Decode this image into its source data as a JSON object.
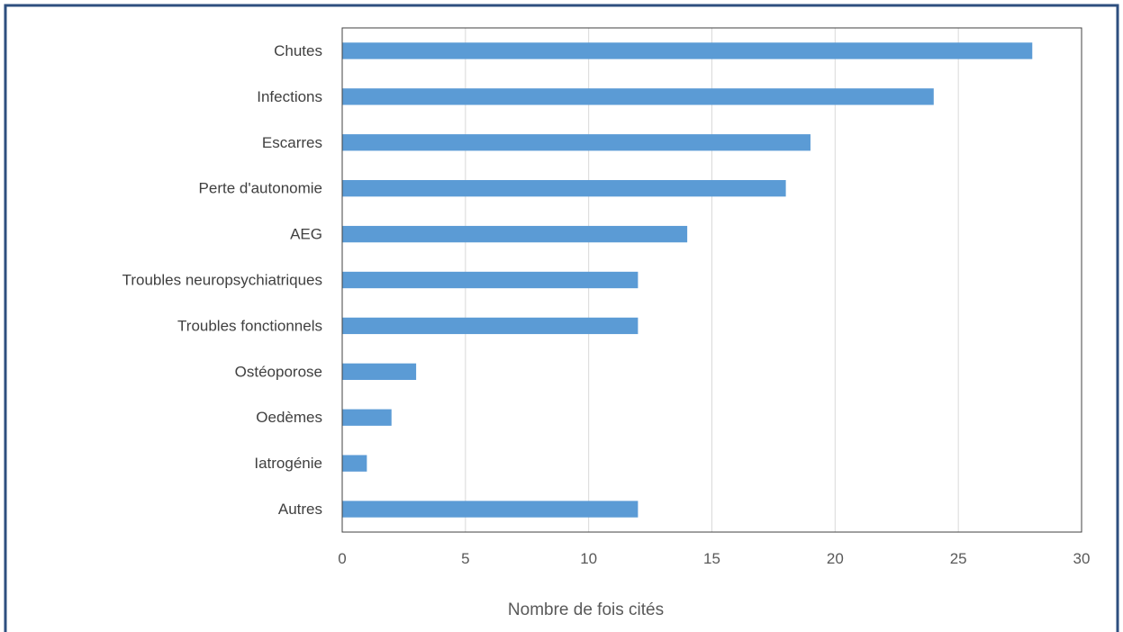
{
  "chart_data": {
    "type": "bar",
    "orientation": "horizontal",
    "categories": [
      "Chutes",
      "Infections",
      "Escarres",
      "Perte d'autonomie",
      "AEG",
      "Troubles neuropsychiatriques",
      "Troubles fonctionnels",
      "Ostéoporose",
      "Oedèmes",
      "Iatrogénie",
      "Autres"
    ],
    "values": [
      28,
      24,
      19,
      18,
      14,
      12,
      12,
      3,
      2,
      1,
      12
    ],
    "xlabel": "Nombre de fois cités",
    "xlim": [
      0,
      30
    ],
    "xticks": [
      0,
      5,
      10,
      15,
      20,
      25,
      30
    ],
    "grid": "vertical",
    "bar_color": "#5b9bd5",
    "legend": "none"
  },
  "colors": {
    "frame": "#2e4f7f",
    "gridline": "#d9d9d9",
    "plot_border": "#404040"
  }
}
